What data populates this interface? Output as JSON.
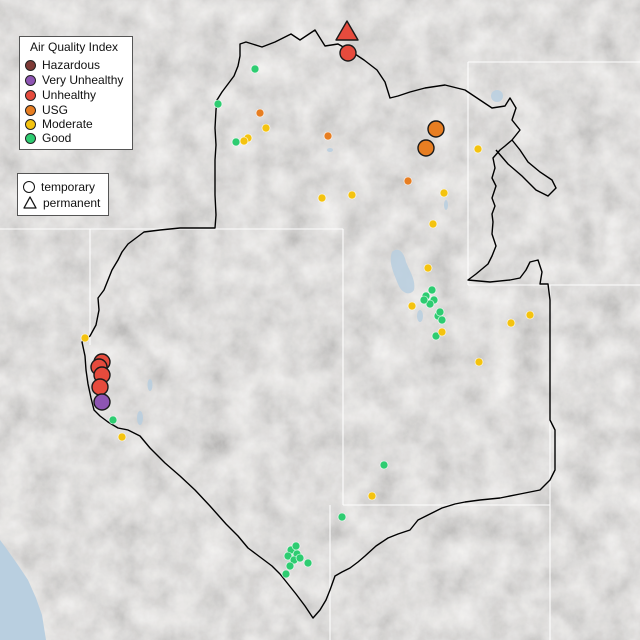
{
  "legend": {
    "title": "Air Quality Index",
    "categories": [
      {
        "label": "Hazardous",
        "color": "#7e3a36"
      },
      {
        "label": "Very Unhealthy",
        "color": "#8e55b3"
      },
      {
        "label": "Unhealthy",
        "color": "#e64b3d"
      },
      {
        "label": "USG",
        "color": "#e77e22"
      },
      {
        "label": "Moderate",
        "color": "#f4c30f"
      },
      {
        "label": "Good",
        "color": "#2ecc71"
      }
    ],
    "monitor_types": [
      {
        "label": "temporary",
        "shape": "circle"
      },
      {
        "label": "permanent",
        "shape": "triangle"
      }
    ]
  },
  "map": {
    "background_color": "#e8e6e4",
    "water_color": "#b9cfe0",
    "boundary_color": "#000000",
    "state_line_color": "#ffffff"
  }
}
